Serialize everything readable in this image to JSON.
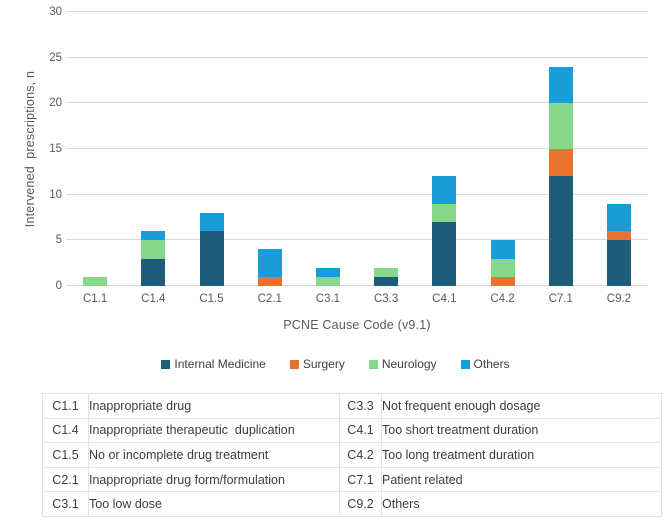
{
  "chart_data": {
    "type": "bar",
    "stacked": true,
    "title": "",
    "xlabel": "PCNE Cause Code (v9.1)",
    "ylabel": "Intervened  prescriptions, n",
    "ylim": [
      0,
      30
    ],
    "yticks": [
      0,
      5,
      10,
      15,
      20,
      25,
      30
    ],
    "grid": true,
    "legend_position": "bottom",
    "categories": [
      "C1.1",
      "C1.4",
      "C1.5",
      "C2.1",
      "C3.1",
      "C3.3",
      "C4.1",
      "C4.2",
      "C7.1",
      "C9.2"
    ],
    "series": [
      {
        "name": "Internal Medicine",
        "color": "#1F5C7A",
        "values": [
          0,
          3,
          6,
          0,
          0,
          1,
          7,
          0,
          12,
          5
        ]
      },
      {
        "name": "Surgery",
        "color": "#E8732E",
        "values": [
          0,
          0,
          0,
          1,
          0,
          0,
          0,
          1,
          3,
          1
        ]
      },
      {
        "name": "Neurology",
        "color": "#86D98B",
        "values": [
          1,
          2,
          0,
          0,
          1,
          1,
          2,
          2,
          5,
          0
        ]
      },
      {
        "name": "Others",
        "color": "#199DD8",
        "values": [
          0,
          1,
          2,
          3,
          1,
          0,
          3,
          2,
          4,
          3
        ]
      }
    ],
    "totals": [
      1,
      6,
      8,
      4,
      2,
      2,
      12,
      5,
      24,
      9
    ]
  },
  "table": {
    "rows": [
      [
        "C1.1",
        "Inappropriate drug",
        "C3.3",
        "Not frequent enough dosage"
      ],
      [
        "C1.4",
        "Inappropriate therapeutic  duplication",
        "C4.1",
        "Too short treatment duration"
      ],
      [
        "C1.5",
        "No or incomplete drug treatment",
        "C4.2",
        "Too long treatment duration"
      ],
      [
        "C2.1",
        "Inappropriate drug form/formulation",
        "C7.1",
        "Patient related"
      ],
      [
        "C3.1",
        "Too low dose",
        "C9.2",
        "Others"
      ]
    ]
  },
  "colors": {
    "gridline": "#d9d9d9",
    "axis_text": "#595959",
    "table_border": "#dce6e9",
    "text": "#3d3d3d"
  }
}
